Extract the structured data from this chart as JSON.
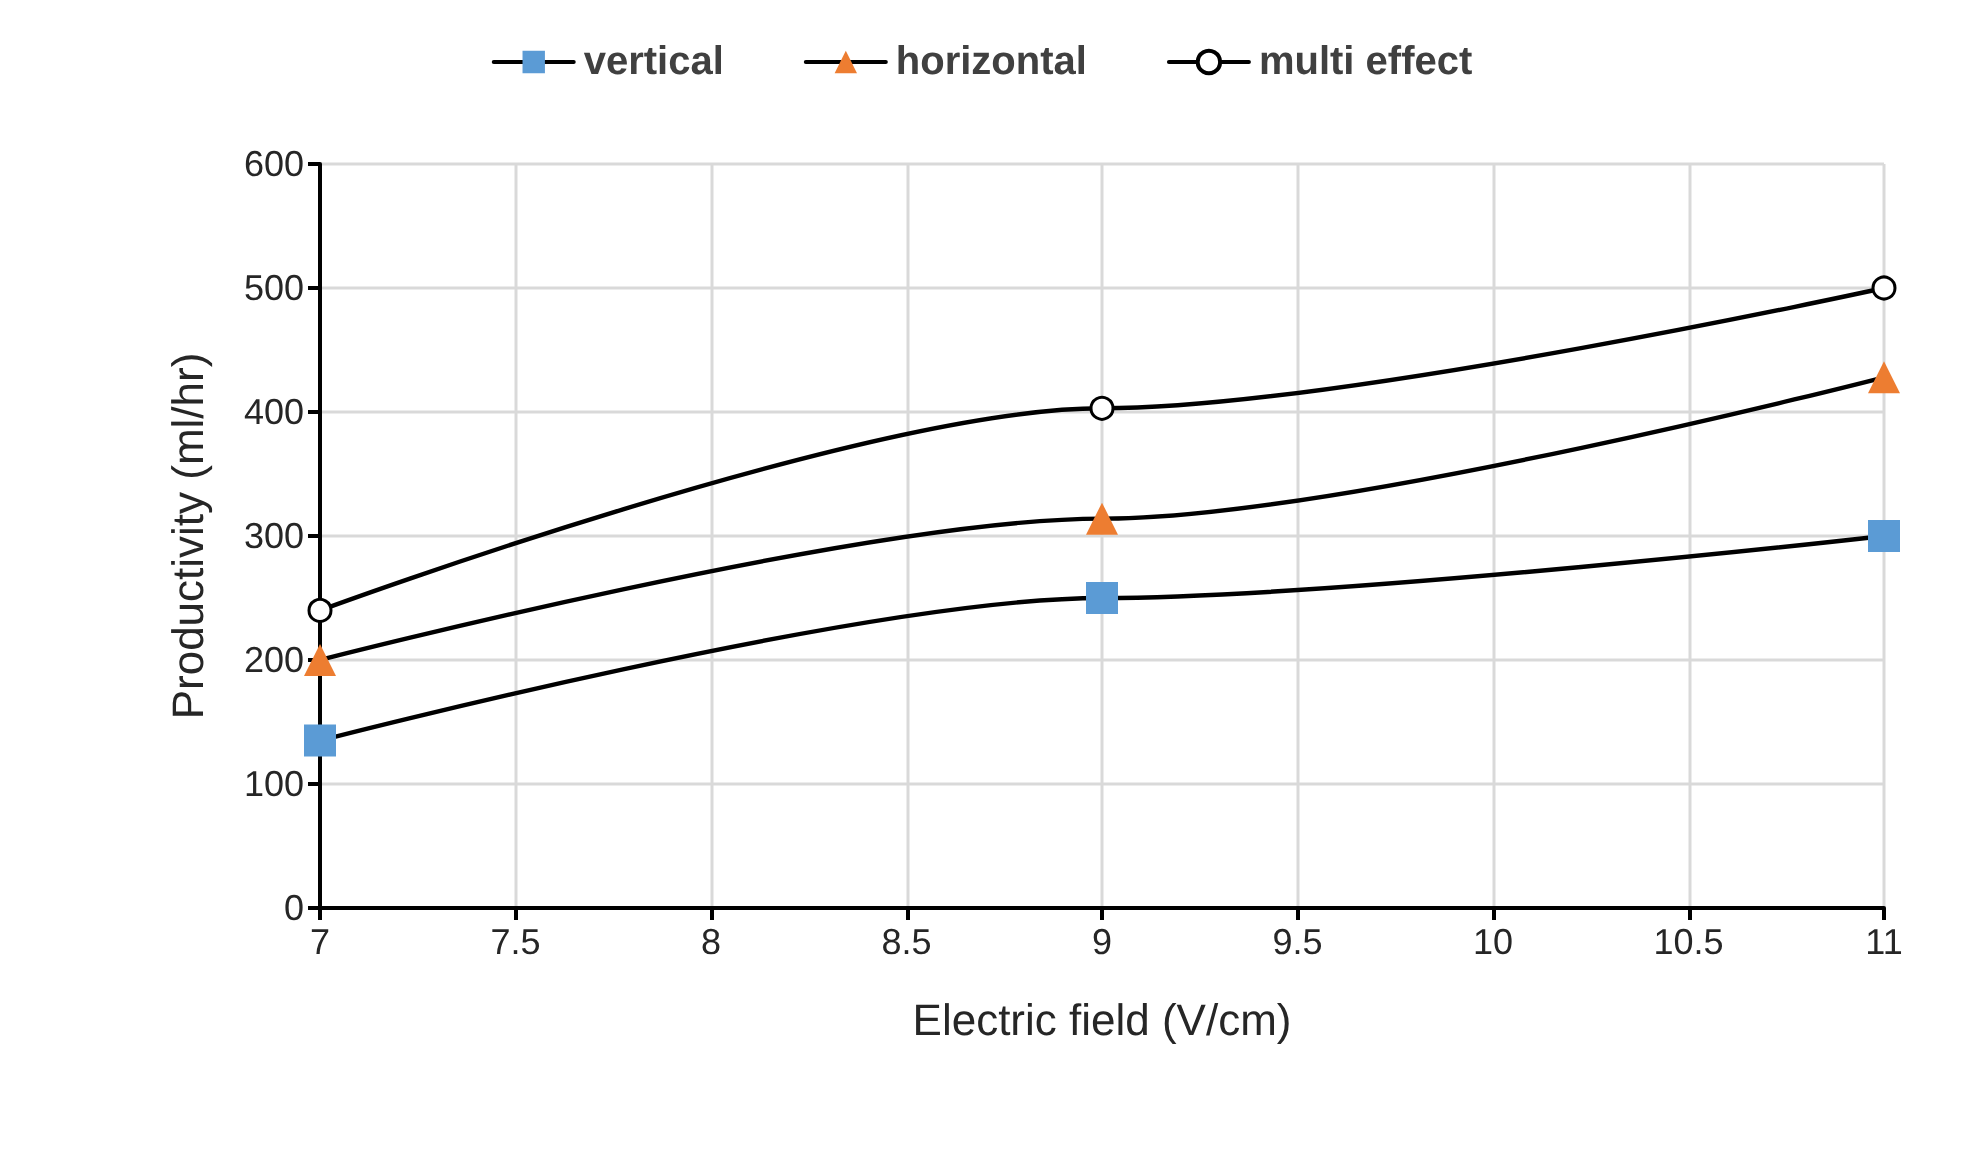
{
  "chart_data": {
    "type": "line",
    "xlabel": "Electric field (V/cm)",
    "ylabel": "Productivity (ml/hr)",
    "x": [
      7,
      9,
      11
    ],
    "series": [
      {
        "name": "vertical",
        "color": "#5b9bd5",
        "marker": "square",
        "values": [
          135,
          250,
          300
        ]
      },
      {
        "name": "horizontal",
        "color": "#ed7d31",
        "marker": "triangle",
        "values": [
          200,
          314,
          428
        ]
      },
      {
        "name": "multi effect",
        "color": "#ffffff",
        "marker": "circle",
        "values": [
          240,
          403,
          500
        ]
      }
    ],
    "xlim": [
      7,
      11
    ],
    "xticks": [
      7,
      7.5,
      8,
      8.5,
      9,
      9.5,
      10,
      10.5,
      11
    ],
    "ylim": [
      0,
      600
    ],
    "yticks": [
      0,
      100,
      200,
      300,
      400,
      500,
      600
    ],
    "grid": true,
    "legend": "top",
    "line_style": "solid"
  }
}
